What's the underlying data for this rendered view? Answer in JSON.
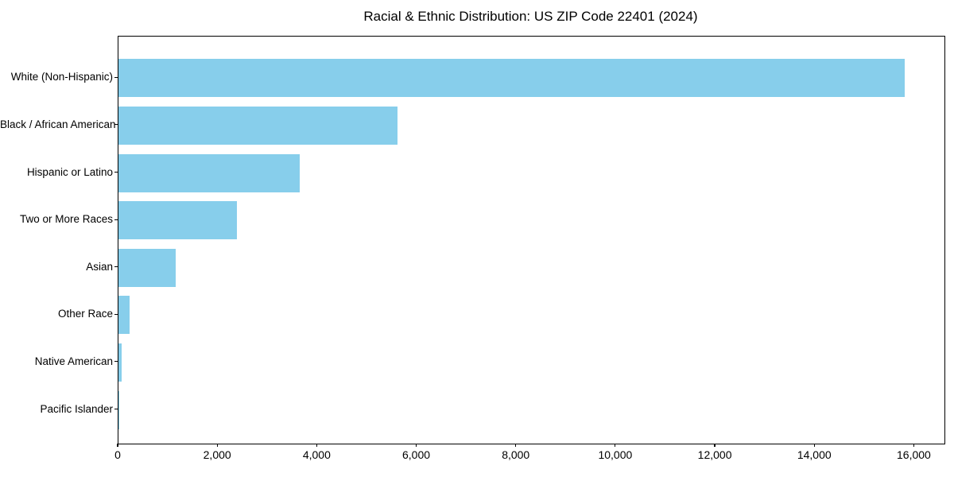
{
  "chart_data": {
    "type": "bar",
    "orientation": "horizontal",
    "title": "Racial & Ethnic Distribution: US ZIP Code 22401 (2024)",
    "categories": [
      "White (Non-Hispanic)",
      "Black / African American",
      "Hispanic or Latino",
      "Two or More Races",
      "Asian",
      "Other Race",
      "Native American",
      "Pacific Islander"
    ],
    "values": [
      15800,
      5600,
      3650,
      2380,
      1150,
      225,
      60,
      15
    ],
    "xlabel": "",
    "ylabel": "",
    "xlim": [
      0,
      16600
    ],
    "x_ticks": [
      0,
      2000,
      4000,
      6000,
      8000,
      10000,
      12000,
      14000,
      16000
    ],
    "x_tick_labels": [
      "0",
      "2,000",
      "4,000",
      "6,000",
      "8,000",
      "10,000",
      "12,000",
      "14,000",
      "16,000"
    ],
    "grid": false,
    "legend": null,
    "bar_color": "#87CEEB"
  },
  "colors": {
    "bar": "#87CEEB",
    "axis": "#000000",
    "text": "#000000",
    "background": "#ffffff"
  }
}
